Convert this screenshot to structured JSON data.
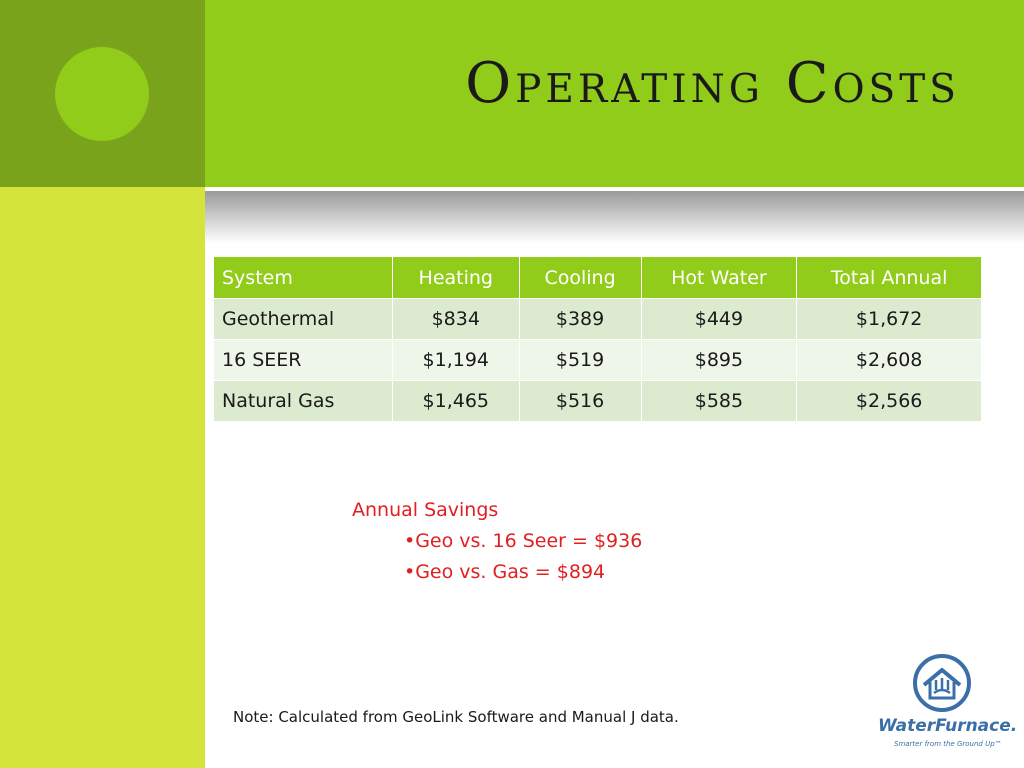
{
  "slide": {
    "title": "Operating Costs",
    "colors": {
      "banner_green": "#92cc1a",
      "dark_green": "#78a31a",
      "lime_strip": "#d4e43a",
      "table_header": "#92cc1a",
      "row_dark": "#dcebd0",
      "row_light": "#eef5e9",
      "savings_text": "#e02020"
    }
  },
  "table": {
    "headers": [
      "System",
      "Heating",
      "Cooling",
      "Hot Water",
      "Total Annual"
    ],
    "rows": [
      [
        "Geothermal",
        "$834",
        "$389",
        "$449",
        "$1,672"
      ],
      [
        "16 SEER",
        "$1,194",
        "$519",
        "$895",
        "$2,608"
      ],
      [
        "Natural Gas",
        "$1,465",
        "$516",
        "$585",
        "$2,566"
      ]
    ]
  },
  "savings": {
    "heading": "Annual Savings",
    "items": [
      "•Geo vs. 16 Seer = $936",
      "•Geo vs. Gas = $894"
    ]
  },
  "note": "Note: Calculated from GeoLink Software and Manual J data.",
  "logo": {
    "brand": "WaterFurnace.",
    "tagline": "Smarter from the Ground Up™",
    "icon": "house-ground-loop-icon"
  }
}
